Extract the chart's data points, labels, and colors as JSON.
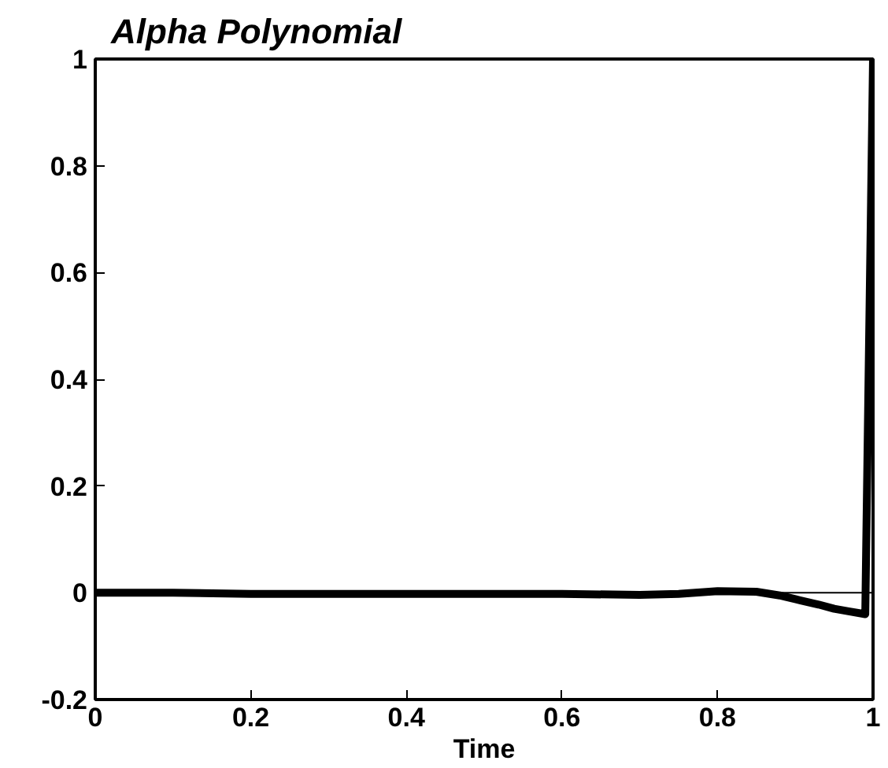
{
  "chart_data": {
    "type": "line",
    "title": "Alpha Polynomial",
    "xlabel": "Time",
    "x": [
      0,
      0.1,
      0.2,
      0.3,
      0.4,
      0.5,
      0.6,
      0.7,
      0.75,
      0.8,
      0.85,
      0.88,
      0.9,
      0.93,
      0.95,
      0.97,
      0.99,
      1.0
    ],
    "series": [
      {
        "color": "#000000",
        "values": [
          0,
          0,
          -0.002,
          -0.002,
          -0.002,
          -0.002,
          -0.002,
          -0.004,
          -0.002,
          0.003,
          0.002,
          -0.005,
          -0.012,
          -0.022,
          -0.03,
          -0.035,
          -0.04,
          1.0
        ]
      }
    ],
    "ref_lines": [
      {
        "axis": "y",
        "value": 0,
        "color": "#000000"
      }
    ],
    "xlim": [
      0,
      1
    ],
    "ylim": [
      -0.2,
      1
    ],
    "xticks": [
      0,
      {
        "value": 0.2,
        "label": "0.2"
      },
      {
        "value": 0.4,
        "label": "0.4"
      },
      {
        "value": 0.6,
        "label": "0.6"
      },
      {
        "value": 0.8,
        "label": "0.8"
      },
      1
    ],
    "yticks": [
      {
        "value": -0.2,
        "label": "-0.2"
      },
      0,
      {
        "value": 0.2,
        "label": "0.2"
      },
      {
        "value": 0.4,
        "label": "0.4"
      },
      {
        "value": 0.6,
        "label": "0.6"
      },
      {
        "value": 0.8,
        "label": "0.8"
      },
      1
    ],
    "marker": "none",
    "line_style": "solid"
  }
}
